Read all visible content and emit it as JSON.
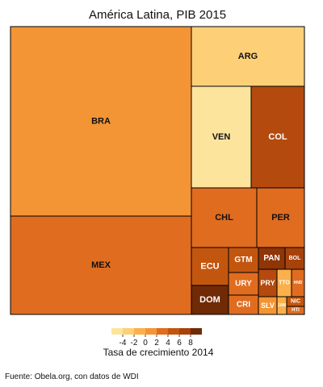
{
  "chart_data": {
    "type": "treemap",
    "title": "América Latina, PIB 2015",
    "size_variable": "PIB 2015",
    "color_variable": "Tasa de crecimiento 2014",
    "items": [
      {
        "label": "BRA",
        "color": "#f39535"
      },
      {
        "label": "MEX",
        "color": "#e06c1f"
      },
      {
        "label": "ARG",
        "color": "#fdd078"
      },
      {
        "label": "VEN",
        "color": "#fde49d"
      },
      {
        "label": "COL",
        "color": "#b44a0e"
      },
      {
        "label": "CHL",
        "color": "#e06c1f"
      },
      {
        "label": "PER",
        "color": "#e06c1f"
      },
      {
        "label": "ECU",
        "color": "#c3560f"
      },
      {
        "label": "DOM",
        "color": "#702a06"
      },
      {
        "label": "GTM",
        "color": "#c3560f"
      },
      {
        "label": "URY",
        "color": "#e06c1f"
      },
      {
        "label": "CRI",
        "color": "#e06c1f"
      },
      {
        "label": "PAN",
        "color": "#8f3506"
      },
      {
        "label": "BOL",
        "color": "#a8420b"
      },
      {
        "label": "PRY",
        "color": "#b44a0e"
      },
      {
        "label": "TTO",
        "color": "#fcb04c"
      },
      {
        "label": "HND",
        "color": "#e06c1f"
      },
      {
        "label": "SLV",
        "color": "#f39535"
      },
      {
        "label": "JAM",
        "color": "#fcb04c"
      },
      {
        "label": "NIC",
        "color": "#c3560f"
      },
      {
        "label": "HTI",
        "color": "#e06c1f"
      }
    ],
    "legend": {
      "title": "Tasa de crecimiento 2014",
      "ticks": [
        "-4",
        "-2",
        "0",
        "2",
        "4",
        "6",
        "8"
      ],
      "colors": [
        "#fde49d",
        "#fdd078",
        "#fcb04c",
        "#f39535",
        "#e06c1f",
        "#c3560f",
        "#a8420b",
        "#702a06"
      ],
      "placement": "bottom"
    }
  },
  "source": "Fuente: Obela.org, con datos de WDI"
}
